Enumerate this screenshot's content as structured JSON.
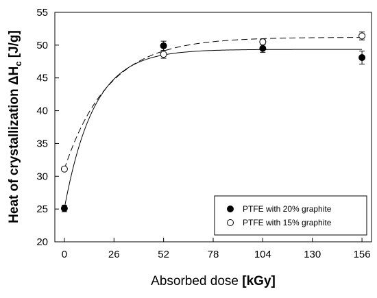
{
  "chart_data": {
    "type": "scatter",
    "title": "",
    "xlabel": "Absorbed dose",
    "xlabel_unit": "[kGy]",
    "ylabel": "Heat of crystallization ΔH",
    "ylabel_subscript": "c",
    "ylabel_unit": "[J/g]",
    "xlim": [
      -5,
      161
    ],
    "ylim": [
      20,
      55
    ],
    "xticks": [
      0,
      26,
      52,
      78,
      104,
      130,
      156
    ],
    "yticks": [
      20,
      25,
      30,
      35,
      40,
      45,
      50,
      55
    ],
    "grid": false,
    "legend_position": "bottom-right",
    "series": [
      {
        "name": "PTFE with 20% graphite",
        "marker": "filled-circle",
        "line_style": "solid",
        "color": "#000000",
        "x": [
          0,
          52,
          104,
          156
        ],
        "y": [
          25.1,
          49.9,
          49.5,
          48.1
        ],
        "yerr": [
          0.5,
          0.7,
          0.6,
          1.0
        ],
        "fit": {
          "a": 49.35,
          "b": 24.25,
          "k": 0.0645
        }
      },
      {
        "name": "PTFE with 15% graphite",
        "marker": "open-circle",
        "line_style": "dashed",
        "color": "#000000",
        "x": [
          0,
          52,
          104,
          156
        ],
        "y": [
          31.1,
          48.6,
          50.5,
          51.4
        ],
        "yerr": [
          0.3,
          0.6,
          0.4,
          0.6
        ],
        "fit": {
          "a": 51.2,
          "b": 20.1,
          "k": 0.0435
        }
      }
    ]
  }
}
